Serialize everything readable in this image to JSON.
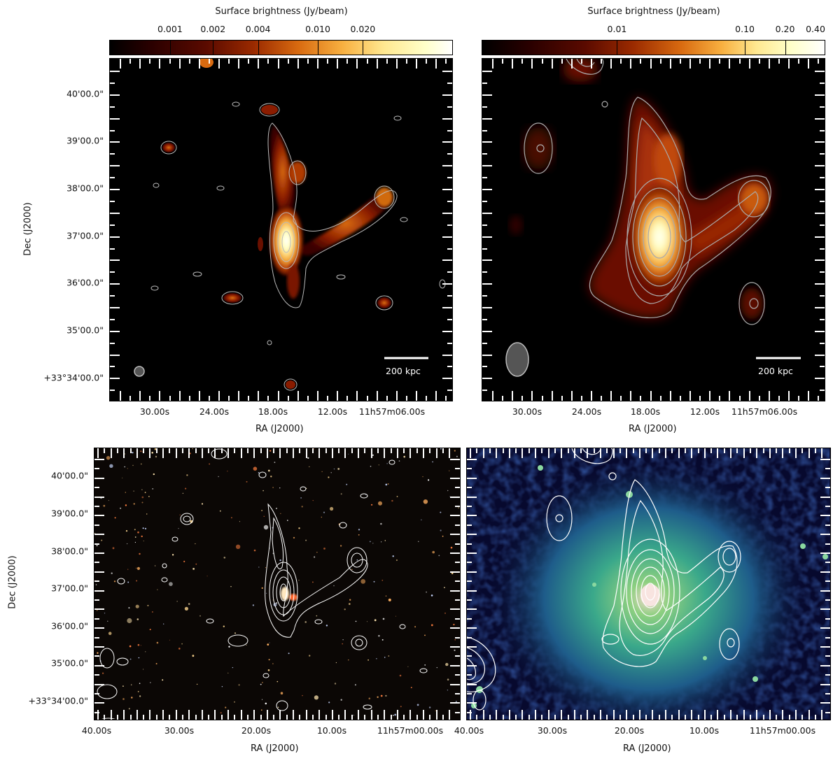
{
  "colorbars": [
    {
      "title": "Surface brightness (Jy/beam)",
      "ticks": [
        "0.001",
        "0.002",
        "0.004",
        "0.010",
        "0.020"
      ],
      "tick_pos": [
        0.177,
        0.302,
        0.433,
        0.607,
        0.738
      ]
    },
    {
      "title": "Surface brightness (Jy/beam)",
      "ticks": [
        "0.01",
        "0.10",
        "0.20",
        "0.40"
      ],
      "tick_pos": [
        0.394,
        0.766,
        0.883,
        1.0
      ]
    }
  ],
  "panels": {
    "top_left": {
      "ylabel": "Dec (J2000)",
      "xlabel": "RA (J2000)",
      "dec_ticks": [
        "40'00.0\"",
        "39'00.0\"",
        "38'00.0\"",
        "37'00.0\"",
        "36'00.0\"",
        "35'00.0\"",
        "+33°34'00.0\""
      ],
      "ra_ticks": [
        "30.00s",
        "24.00s",
        "18.00s",
        "12.00s",
        "11h57m06.00s"
      ],
      "scalebar": "200 kpc"
    },
    "top_right": {
      "xlabel": "RA (J2000)",
      "ra_ticks": [
        "30.00s",
        "24.00s",
        "18.00s",
        "12.00s",
        "11h57m06.00s"
      ],
      "scalebar": "200 kpc"
    },
    "bottom_left": {
      "ylabel": "Dec (J2000)",
      "xlabel": "RA (J2000)",
      "dec_ticks": [
        "40'00.0\"",
        "39'00.0\"",
        "38'00.0\"",
        "37'00.0\"",
        "36'00.0\"",
        "35'00.0\"",
        "+33°34'00.0\""
      ],
      "ra_ticks": [
        "40.00s",
        "30.00s",
        "20.00s",
        "10.00s",
        "11h57m00.00s"
      ]
    },
    "bottom_right": {
      "xlabel": "RA (J2000)",
      "ra_ticks": [
        "40.00s",
        "30.00s",
        "20.00s",
        "10.00s",
        "11h57m00.00s"
      ]
    }
  },
  "colors": {
    "radio_low": "#3a0000",
    "radio_mid": "#c85a10",
    "radio_high": "#ffffc0",
    "xray_low": "#0a1450",
    "xray_mid": "#2f9a8a",
    "contour_gray": "#bbbbbb",
    "contour_white": "#ffffff"
  }
}
